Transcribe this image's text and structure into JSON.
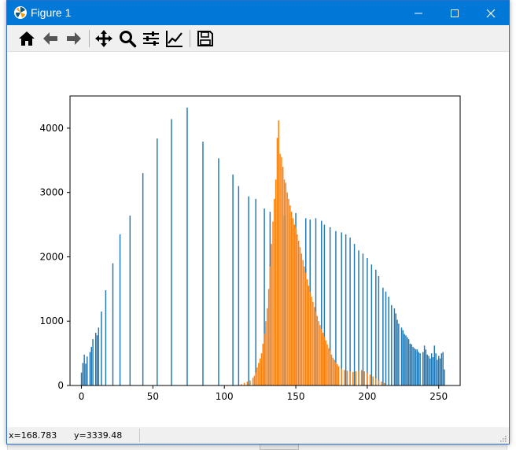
{
  "window": {
    "title": "Figure 1",
    "controls": {
      "minimize": "—",
      "maximize": "☐",
      "close": "✕"
    }
  },
  "toolbar": {
    "tools": [
      {
        "name": "home-icon",
        "tooltip": "Reset original view"
      },
      {
        "name": "back-icon",
        "tooltip": "Back to previous view"
      },
      {
        "name": "forward-icon",
        "tooltip": "Forward to next view"
      },
      {
        "name": "pan-icon",
        "tooltip": "Pan axes"
      },
      {
        "name": "zoom-icon",
        "tooltip": "Zoom to rectangle"
      },
      {
        "name": "subplots-icon",
        "tooltip": "Configure subplots"
      },
      {
        "name": "edit-axis-icon",
        "tooltip": "Edit axis, curve and image parameters"
      },
      {
        "name": "save-icon",
        "tooltip": "Save the figure"
      }
    ]
  },
  "status": {
    "x": "x=168.783",
    "y": "y=3339.48"
  },
  "colors": {
    "series1": "#1f77b4",
    "series2": "#ff7f0e",
    "titlebar": "#0078d7"
  },
  "chart_data": {
    "type": "bar",
    "xlim": [
      -8,
      265
    ],
    "ylim": [
      0,
      4500
    ],
    "xticks": [
      0,
      50,
      100,
      150,
      200,
      250
    ],
    "yticks": [
      0,
      1000,
      2000,
      3000,
      4000
    ],
    "series": [
      {
        "color": "#1f77b4",
        "points": [
          [
            0,
            200
          ],
          [
            1,
            350
          ],
          [
            2,
            480
          ],
          [
            3,
            340
          ],
          [
            4,
            450
          ],
          [
            6,
            520
          ],
          [
            7,
            600
          ],
          [
            8,
            720
          ],
          [
            10,
            820
          ],
          [
            11,
            780
          ],
          [
            12,
            900
          ],
          [
            14,
            1150
          ],
          [
            17,
            1480
          ],
          [
            22,
            1900
          ],
          [
            27,
            2350
          ],
          [
            34,
            2640
          ],
          [
            43,
            3300
          ],
          [
            53,
            3840
          ],
          [
            63,
            4140
          ],
          [
            74,
            4320
          ],
          [
            85,
            3790
          ],
          [
            96,
            3530
          ],
          [
            106,
            3280
          ],
          [
            110,
            3100
          ],
          [
            117,
            2940
          ],
          [
            122,
            2900
          ],
          [
            128,
            2750
          ],
          [
            132,
            2700
          ],
          [
            138,
            2600
          ],
          [
            142,
            2640
          ],
          [
            146,
            2600
          ],
          [
            150,
            2680
          ],
          [
            157,
            2600
          ],
          [
            160,
            2580
          ],
          [
            164,
            2600
          ],
          [
            168,
            2560
          ],
          [
            170,
            2500
          ],
          [
            174,
            2460
          ],
          [
            178,
            2400
          ],
          [
            182,
            2380
          ],
          [
            185,
            2350
          ],
          [
            188,
            2300
          ],
          [
            191,
            2200
          ],
          [
            194,
            2100
          ],
          [
            197,
            2050
          ],
          [
            200,
            1980
          ],
          [
            203,
            1880
          ],
          [
            206,
            1800
          ],
          [
            208,
            1700
          ],
          [
            211,
            1520
          ],
          [
            213,
            1460
          ],
          [
            215,
            1380
          ],
          [
            217,
            1250
          ],
          [
            219,
            1200
          ],
          [
            220,
            1120
          ],
          [
            221,
            1020
          ],
          [
            222,
            960
          ],
          [
            224,
            900
          ],
          [
            225,
            860
          ],
          [
            226,
            800
          ],
          [
            227,
            780
          ],
          [
            228,
            750
          ],
          [
            229,
            720
          ],
          [
            230,
            650
          ],
          [
            231,
            640
          ],
          [
            232,
            600
          ],
          [
            233,
            580
          ],
          [
            234,
            560
          ],
          [
            235,
            560
          ],
          [
            236,
            520
          ],
          [
            237,
            500
          ],
          [
            239,
            520
          ],
          [
            240,
            620
          ],
          [
            241,
            560
          ],
          [
            242,
            480
          ],
          [
            243,
            460
          ],
          [
            244,
            420
          ],
          [
            245,
            500
          ],
          [
            246,
            440
          ],
          [
            247,
            620
          ],
          [
            248,
            500
          ],
          [
            249,
            400
          ],
          [
            250,
            460
          ],
          [
            251,
            420
          ],
          [
            252,
            500
          ],
          [
            253,
            520
          ],
          [
            254,
            250
          ]
        ]
      },
      {
        "color": "#ff7f0e",
        "points": [
          [
            112,
            20
          ],
          [
            114,
            40
          ],
          [
            116,
            60
          ],
          [
            118,
            80
          ],
          [
            120,
            120
          ],
          [
            121,
            150
          ],
          [
            122,
            200
          ],
          [
            123,
            280
          ],
          [
            124,
            350
          ],
          [
            125,
            420
          ],
          [
            126,
            500
          ],
          [
            127,
            650
          ],
          [
            128,
            800
          ],
          [
            129,
            1000
          ],
          [
            130,
            1200
          ],
          [
            131,
            1500
          ],
          [
            132,
            1850
          ],
          [
            133,
            2200
          ],
          [
            134,
            2550
          ],
          [
            135,
            2900
          ],
          [
            136,
            3200
          ],
          [
            137,
            3850
          ],
          [
            138,
            4120
          ],
          [
            139,
            3600
          ],
          [
            140,
            3550
          ],
          [
            141,
            3400
          ],
          [
            142,
            3200
          ],
          [
            143,
            3150
          ],
          [
            144,
            3000
          ],
          [
            145,
            2900
          ],
          [
            146,
            2800
          ],
          [
            147,
            2700
          ],
          [
            148,
            2600
          ],
          [
            149,
            2500
          ],
          [
            150,
            2450
          ],
          [
            151,
            2350
          ],
          [
            152,
            2250
          ],
          [
            153,
            2150
          ],
          [
            154,
            2050
          ],
          [
            155,
            1950
          ],
          [
            156,
            1850
          ],
          [
            157,
            1750
          ],
          [
            158,
            1650
          ],
          [
            159,
            1550
          ],
          [
            160,
            1450
          ],
          [
            161,
            1380
          ],
          [
            162,
            1300
          ],
          [
            163,
            1220
          ],
          [
            164,
            1150
          ],
          [
            165,
            1080
          ],
          [
            166,
            1000
          ],
          [
            167,
            940
          ],
          [
            168,
            880
          ],
          [
            169,
            820
          ],
          [
            170,
            760
          ],
          [
            171,
            700
          ],
          [
            172,
            640
          ],
          [
            173,
            580
          ],
          [
            174,
            540
          ],
          [
            175,
            480
          ],
          [
            176,
            430
          ],
          [
            177,
            400
          ],
          [
            178,
            360
          ],
          [
            179,
            330
          ],
          [
            180,
            300
          ],
          [
            182,
            260
          ],
          [
            184,
            240
          ],
          [
            186,
            230
          ],
          [
            188,
            220
          ],
          [
            190,
            210
          ],
          [
            192,
            220
          ],
          [
            194,
            230
          ],
          [
            196,
            240
          ],
          [
            198,
            220
          ],
          [
            200,
            200
          ],
          [
            202,
            170
          ],
          [
            204,
            140
          ],
          [
            206,
            110
          ],
          [
            208,
            80
          ],
          [
            210,
            60
          ],
          [
            212,
            40
          ]
        ]
      }
    ]
  }
}
